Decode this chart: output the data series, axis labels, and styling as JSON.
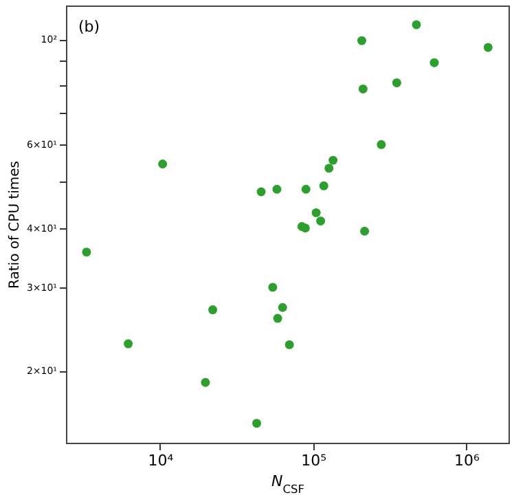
{
  "chart_data": {
    "type": "scatter",
    "xlabel": "N$_{CSF}$",
    "ylabel": "Ratio of CPU times",
    "annotations": [
      "(b)"
    ],
    "log": "xy",
    "grid": false,
    "marker": "circle",
    "x": [
      10400,
      45800,
      58000,
      89800,
      117500,
      127000,
      135000,
      279000,
      208000,
      212000,
      352000,
      473000,
      619000,
      1390000,
      104700,
      112000,
      84500,
      89000,
      217000,
      3310,
      54500,
      22100,
      63200,
      58700,
      6200,
      70000,
      19800,
      42800
    ],
    "series": [
      {
        "color": "#2ca02c",
        "values": [
          54.6,
          47.7,
          48.3,
          48.3,
          49.1,
          53.5,
          55.6,
          60,
          99.4,
          78.6,
          81,
          107.4,
          89.3,
          96.2,
          43.1,
          41.4,
          40.3,
          40,
          39.4,
          35.6,
          30,
          26.9,
          27.2,
          25.8,
          22.8,
          22.7,
          18.9,
          15.5
        ]
      }
    ],
    "xlim": [
      2430,
      1890000
    ],
    "xticks": [
      {
        "value": 10000,
        "label": "10⁴"
      },
      {
        "value": 100000,
        "label": "10⁵"
      },
      {
        "value": 1000000,
        "label": "10⁶"
      }
    ],
    "ylim": [
      14.1,
      117.9
    ],
    "yticks": [
      {
        "value": 20,
        "label": "2×10¹"
      },
      {
        "value": 30,
        "label": "3×10¹"
      },
      {
        "value": 40,
        "label": "4×10¹"
      },
      {
        "value": 50,
        "label": null
      },
      {
        "value": 60,
        "label": "6×10¹"
      },
      {
        "value": 70,
        "label": null
      },
      {
        "value": 80,
        "label": null
      },
      {
        "value": 90,
        "label": null
      },
      {
        "value": 100,
        "label": "10²"
      }
    ]
  }
}
